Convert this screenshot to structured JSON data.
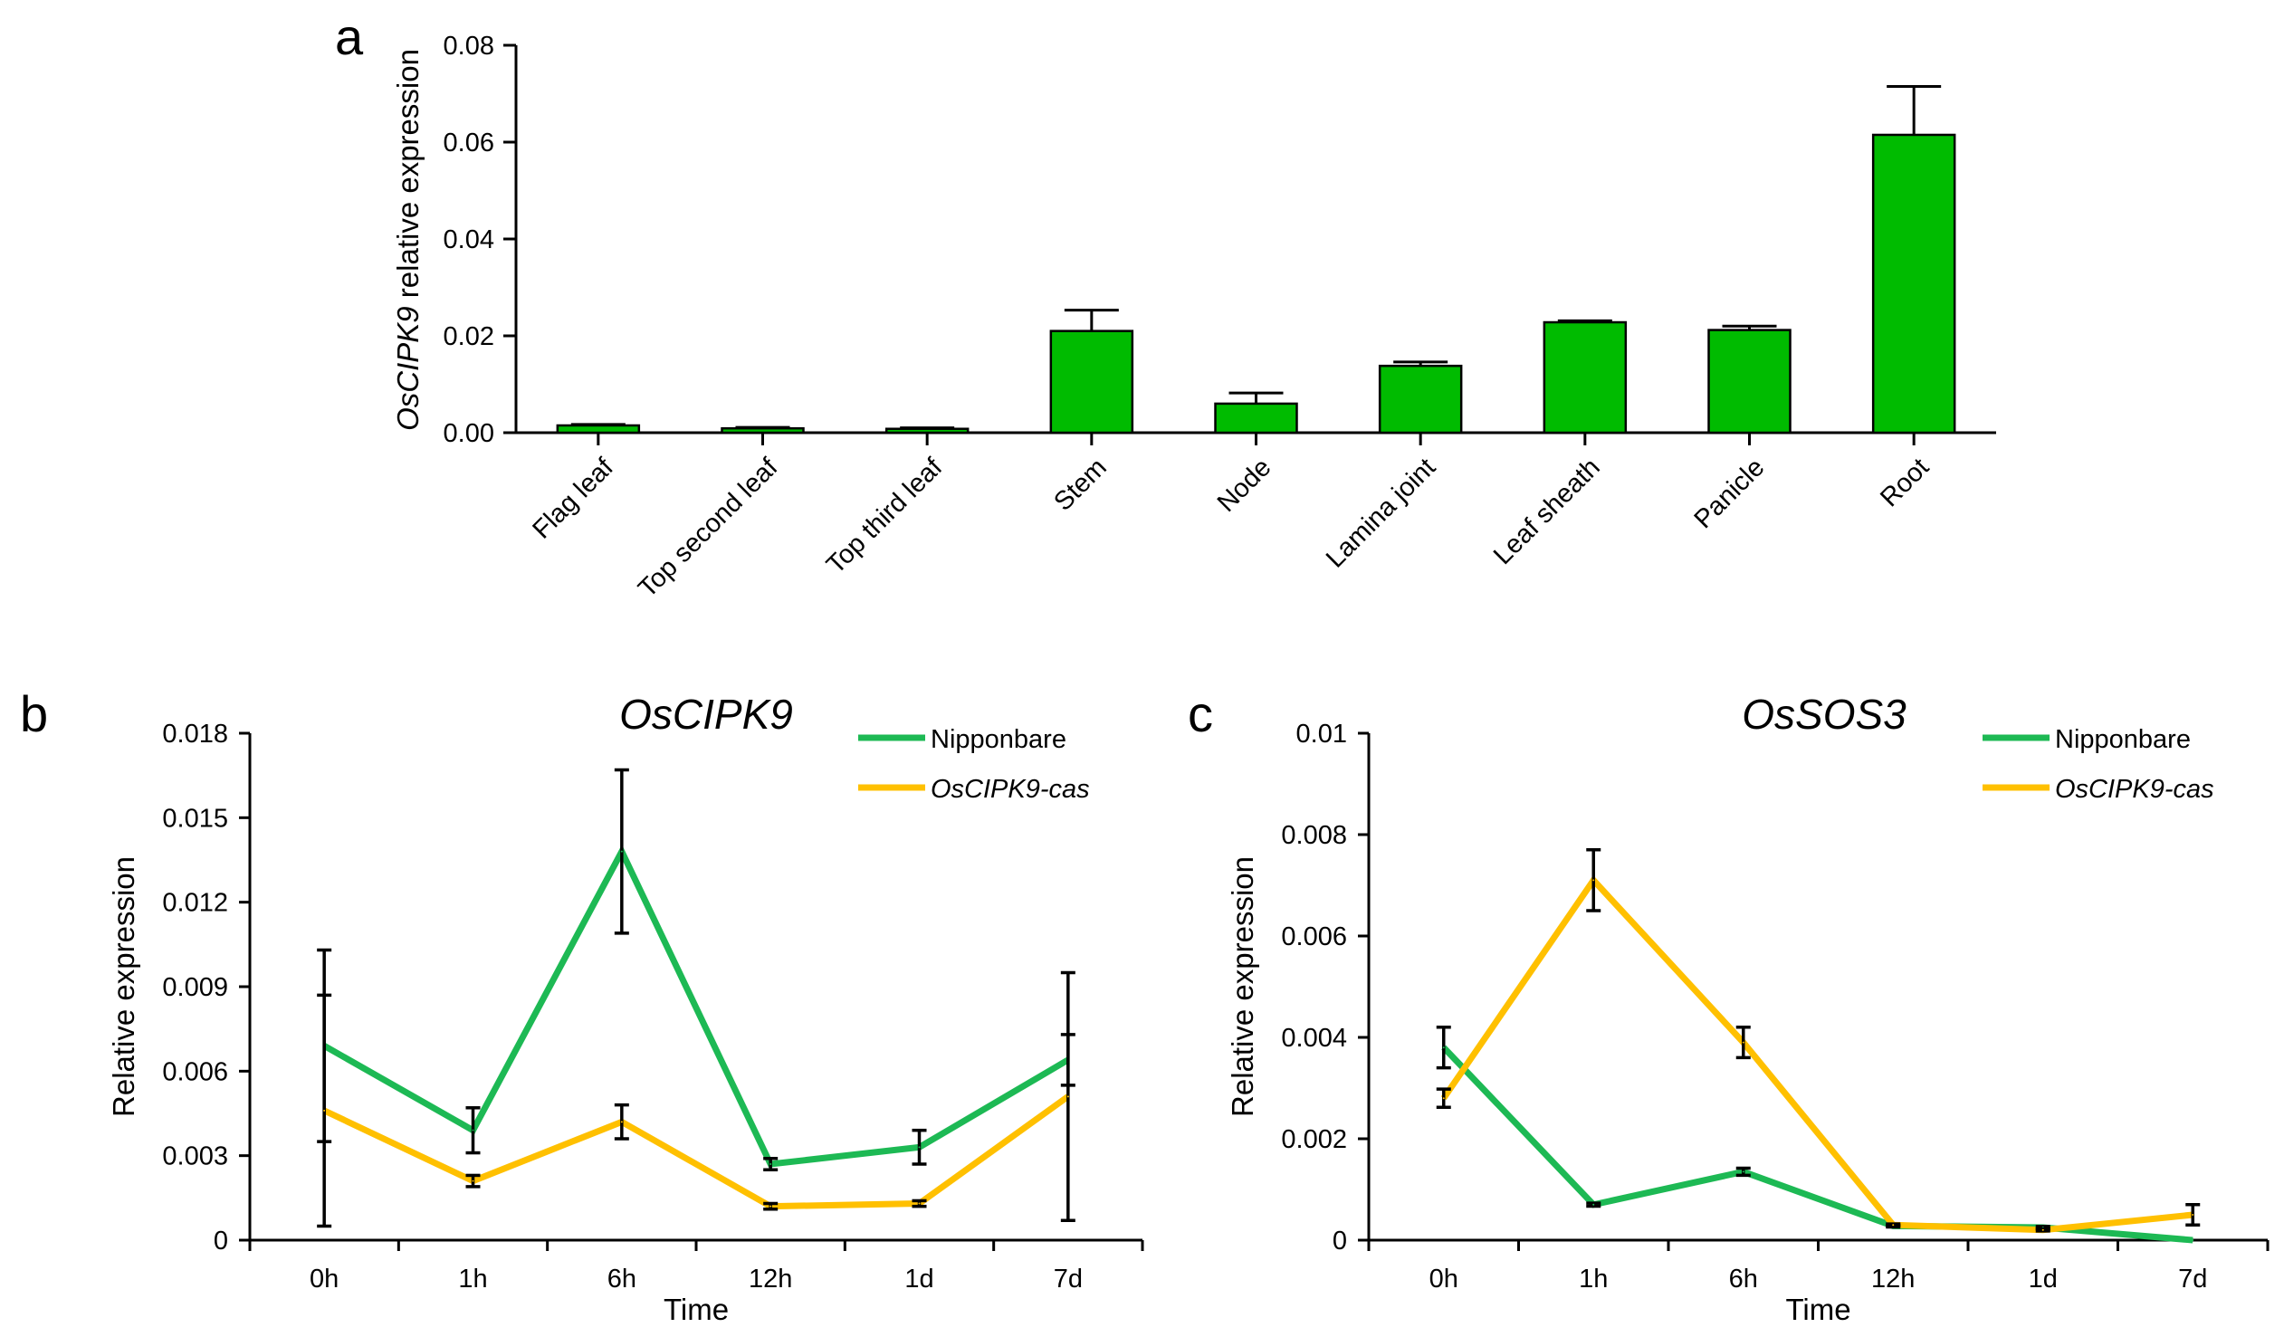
{
  "chart_data": [
    {
      "id": "a",
      "panel_label": "a",
      "type": "bar",
      "title": "",
      "ylabel": {
        "italic": "OsCIPK9",
        "rest": " relative expression"
      },
      "xlabel": "",
      "ylim": [
        0,
        0.08
      ],
      "yticks": [
        "0.00",
        "0.02",
        "0.04",
        "0.06",
        "0.08"
      ],
      "color": "#00bb00",
      "categories": [
        "Flag leaf",
        "Top second leaf",
        "Top third leaf",
        "Stem",
        "Node",
        "Lamina joint",
        "Leaf sheath",
        "Panicle",
        "Root"
      ],
      "values": [
        0.0015,
        0.0009,
        0.0008,
        0.021,
        0.006,
        0.0138,
        0.0228,
        0.0212,
        0.0615
      ],
      "errors": [
        0.0002,
        0.0002,
        0.0002,
        0.0043,
        0.0022,
        0.0008,
        0.0003,
        0.0008,
        0.01
      ]
    },
    {
      "id": "b",
      "panel_label": "b",
      "type": "line",
      "title": "OsCIPK9",
      "xlabel": "Time",
      "ylabel": "Relative expression",
      "ylim": [
        0,
        0.018
      ],
      "yticks": [
        "0",
        "0.003",
        "0.006",
        "0.009",
        "0.012",
        "0.015",
        "0.018"
      ],
      "categories": [
        "0h",
        "1h",
        "6h",
        "12h",
        "1d",
        "7d"
      ],
      "series": [
        {
          "name": "Nipponbare",
          "italic": false,
          "color": "#1db954",
          "values": [
            0.0069,
            0.0039,
            0.0138,
            0.0027,
            0.0033,
            0.0064
          ],
          "errors": [
            0.0034,
            0.0008,
            0.0029,
            0.0002,
            0.0006,
            0.0009
          ]
        },
        {
          "name": "OsCIPK9-cas",
          "italic": true,
          "color": "#ffc000",
          "values": [
            0.0046,
            0.0021,
            0.0042,
            0.0012,
            0.0013,
            0.0051
          ],
          "errors": [
            0.0041,
            0.0002,
            0.0006,
            0.0001,
            0.0001,
            0.0044
          ]
        }
      ]
    },
    {
      "id": "c",
      "panel_label": "c",
      "type": "line",
      "title": "OsSOS3",
      "xlabel": "Time",
      "ylabel": "Relative expression",
      "ylim": [
        0,
        0.01
      ],
      "yticks": [
        "0",
        "0.002",
        "0.004",
        "0.006",
        "0.008",
        "0.01"
      ],
      "categories": [
        "0h",
        "1h",
        "6h",
        "12h",
        "1d",
        "7d"
      ],
      "series": [
        {
          "name": "Nipponbare",
          "italic": false,
          "color": "#1db954",
          "values": [
            0.0038,
            0.0007,
            0.00135,
            0.00028,
            0.00025,
            0.0
          ],
          "errors": [
            0.0004,
            3e-05,
            7e-05,
            2e-05,
            2e-05,
            0.0
          ]
        },
        {
          "name": "OsCIPK9-cas",
          "italic": true,
          "color": "#ffc000",
          "values": [
            0.0028,
            0.0071,
            0.0039,
            0.0003,
            0.0002,
            0.0005
          ],
          "errors": [
            0.00018,
            0.0006,
            0.0003,
            2e-05,
            2e-05,
            0.0002
          ]
        }
      ]
    }
  ]
}
